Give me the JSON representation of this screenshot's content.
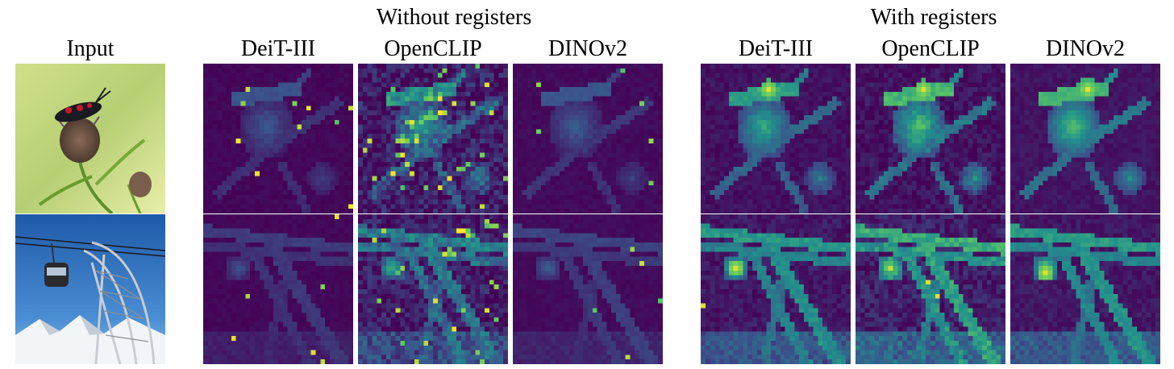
{
  "figure": {
    "group_without": "Without registers",
    "group_with": "With registers",
    "input_label": "Input",
    "models": [
      "DeiT-III",
      "OpenCLIP",
      "DINOv2"
    ]
  },
  "colors": {
    "viridis_dark": "#440154",
    "viridis_mid": "#3b528b",
    "viridis_teal": "#21918c",
    "viridis_green": "#5ec962",
    "viridis_yellow": "#fde725"
  }
}
